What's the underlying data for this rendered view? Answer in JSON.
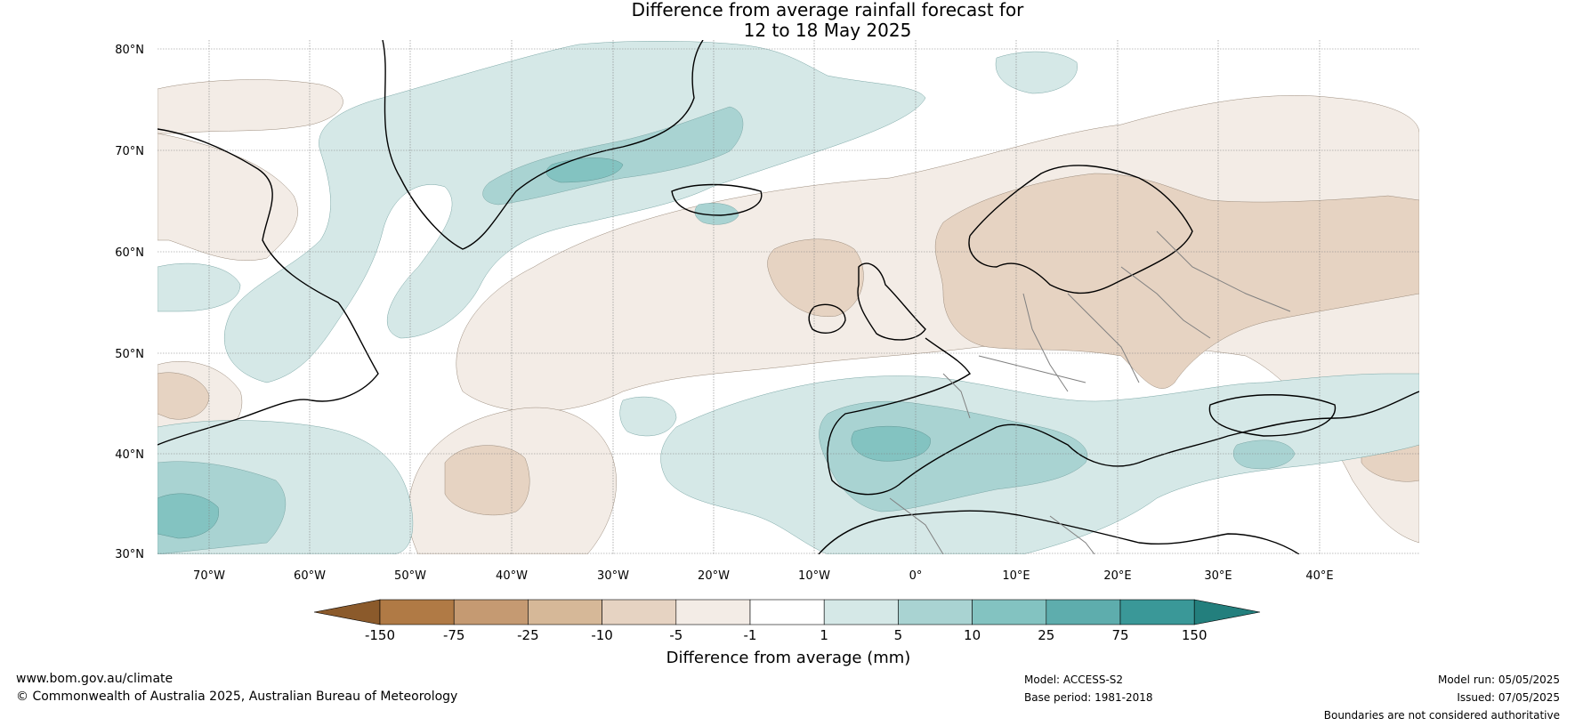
{
  "title": {
    "line1": "Difference from average rainfall forecast for",
    "line2": "12 to 18 May 2025"
  },
  "axes": {
    "lat_labels": [
      "80°N",
      "70°N",
      "60°N",
      "50°N",
      "40°N",
      "30°N"
    ],
    "lon_labels": [
      "70°W",
      "60°W",
      "50°W",
      "40°W",
      "30°W",
      "20°W",
      "10°W",
      "0°",
      "10°E",
      "20°E",
      "30°E",
      "40°E"
    ]
  },
  "colorbar": {
    "title": "Difference from average (mm)",
    "tick_labels": [
      "-150",
      "-75",
      "-25",
      "-10",
      "-5",
      "-1",
      "1",
      "5",
      "10",
      "25",
      "75",
      "150"
    ],
    "colors": [
      "#8b5a2b",
      "#b07a45",
      "#c59a72",
      "#d6b898",
      "#e6d3c2",
      "#f3ece6",
      "#ffffff",
      "#d5e8e7",
      "#a9d3d2",
      "#83c3c1",
      "#5eadad",
      "#3a9898",
      "#237f7d"
    ]
  },
  "map_colors": {
    "ocean_base": "#ffffff",
    "wet_light": "#d5e8e7",
    "wet_mid": "#a9d3d2",
    "wet_strong": "#83c3c1",
    "dry_light": "#f3ece6",
    "dry_mid": "#e6d3c2",
    "coast": "#000000",
    "border": "#808080",
    "grid": "#808080"
  },
  "footer": {
    "website": "www.bom.gov.au/climate",
    "copyright": "© Commonwealth of Australia 2025, Australian Bureau of Meteorology",
    "model": "Model: ACCESS-S2",
    "base_period": "Base period: 1981-2018",
    "model_run": "Model run: 05/05/2025",
    "issued": "Issued: 07/05/2025",
    "disclaimer": "Boundaries are not considered authoritative"
  }
}
